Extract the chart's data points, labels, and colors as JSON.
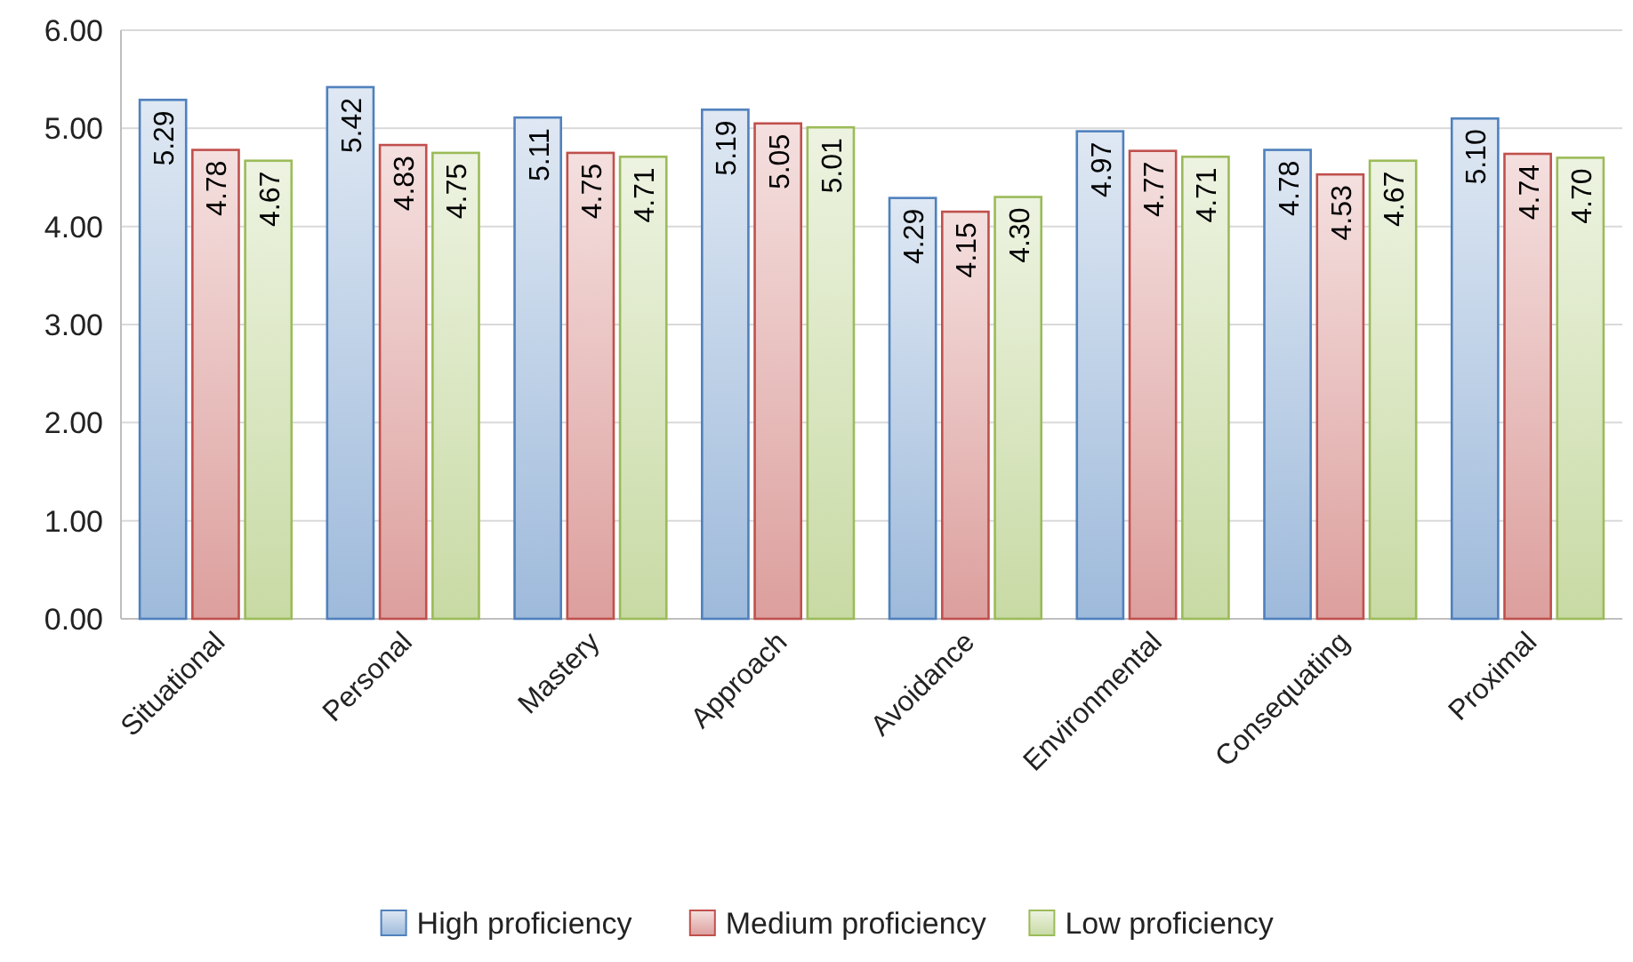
{
  "chart_data": {
    "type": "bar",
    "categories": [
      "Situational",
      "Personal",
      "Mastery",
      "Approach",
      "Avoidance",
      "Environmental",
      "Consequating",
      "Proximal"
    ],
    "series": [
      {
        "name": "High proficiency",
        "color": "#4f81bd",
        "values": [
          5.29,
          5.42,
          5.11,
          5.19,
          4.29,
          4.97,
          4.78,
          5.1
        ],
        "value_labels": [
          "5.29",
          "5.42",
          "5.11",
          "5.19",
          "4.29",
          "4.97",
          "4.78",
          "5.10"
        ]
      },
      {
        "name": "Medium proficiency",
        "color": "#c0504d",
        "values": [
          4.78,
          4.83,
          4.75,
          5.05,
          4.15,
          4.77,
          4.53,
          4.74
        ],
        "value_labels": [
          "4.78",
          "4.83",
          "4.75",
          "5.05",
          "4.15",
          "4.77",
          "4.53",
          "4.74"
        ]
      },
      {
        "name": "Low proficiency",
        "color": "#9bbb59",
        "values": [
          4.67,
          4.75,
          4.71,
          5.01,
          4.3,
          4.71,
          4.67,
          4.7
        ],
        "value_labels": [
          "4.67",
          "4.75",
          "4.71",
          "5.01",
          "4.30",
          "4.71",
          "4.67",
          "4.70"
        ]
      }
    ],
    "ylim": [
      0,
      6
    ],
    "yticks": [
      {
        "value": 0,
        "label": "0.00"
      },
      {
        "value": 1,
        "label": "1.00"
      },
      {
        "value": 2,
        "label": "2.00"
      },
      {
        "value": 3,
        "label": "3.00"
      },
      {
        "value": 4,
        "label": "4.00"
      },
      {
        "value": 5,
        "label": "5.00"
      },
      {
        "value": 6,
        "label": "6.00"
      }
    ],
    "grid": "y",
    "legend": "bottom"
  }
}
